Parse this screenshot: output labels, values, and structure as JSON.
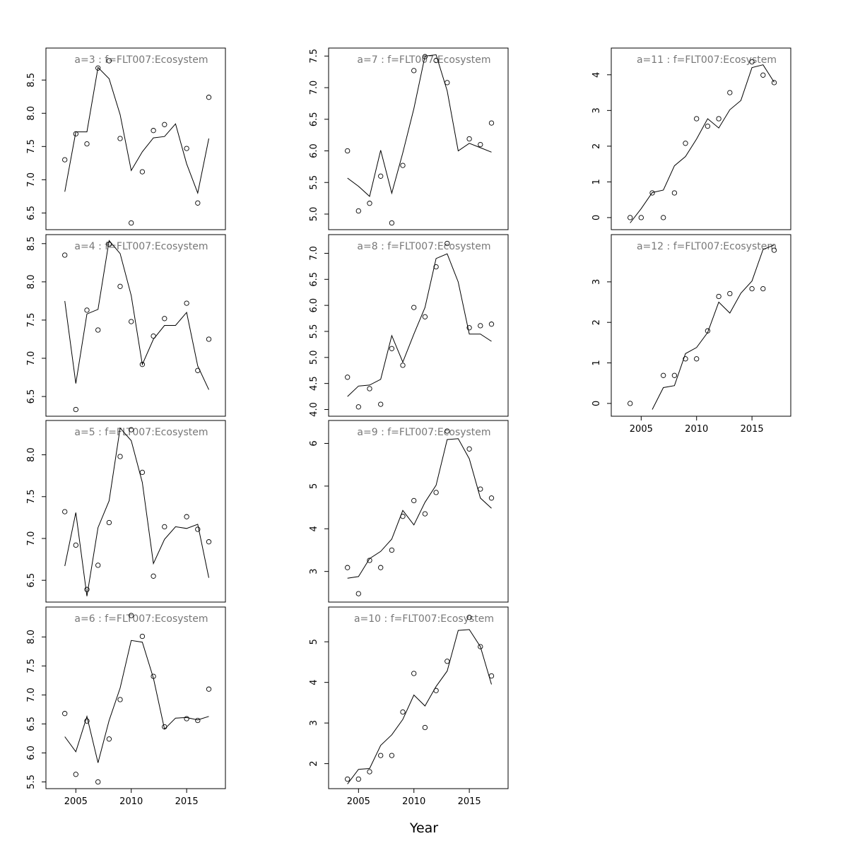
{
  "chart_data": {
    "type": "scatter",
    "xlabel": "Year",
    "x": [
      2004,
      2005,
      2006,
      2007,
      2008,
      2009,
      2010,
      2011,
      2012,
      2013,
      2014,
      2015,
      2016,
      2017
    ],
    "xlim": [
      2002.3,
      2018.5
    ],
    "xticks": [
      2005,
      2010,
      2015
    ],
    "panels": [
      {
        "title": "a=3  :  f=FLT007:Ecosystem",
        "ylim": [
          6.35,
          8.88
        ],
        "yticks": [
          "6.5",
          "7.0",
          "7.5",
          "8.0",
          "8.5"
        ],
        "points": [
          [
            2004,
            7.3
          ],
          [
            2005,
            7.69
          ],
          [
            2006,
            7.54
          ],
          [
            2007,
            8.68
          ],
          [
            2008,
            8.79
          ],
          [
            2009,
            7.62
          ],
          [
            2010,
            6.35
          ],
          [
            2011,
            7.12
          ],
          [
            2012,
            7.74
          ],
          [
            2013,
            7.83
          ],
          [
            2015,
            7.47
          ],
          [
            2016,
            6.65
          ],
          [
            2017,
            8.24
          ]
        ],
        "fit": [
          [
            2004,
            6.82
          ],
          [
            2005,
            7.72
          ],
          [
            2006,
            7.72
          ],
          [
            2007,
            8.69
          ],
          [
            2008,
            8.52
          ],
          [
            2009,
            7.98
          ],
          [
            2010,
            7.14
          ],
          [
            2011,
            7.42
          ],
          [
            2012,
            7.63
          ],
          [
            2013,
            7.65
          ],
          [
            2014,
            7.84
          ],
          [
            2015,
            7.24
          ],
          [
            2016,
            6.8
          ],
          [
            2017,
            7.62
          ]
        ]
      },
      {
        "title": "a=4  :  f=FLT007:Ecosystem",
        "ylim": [
          6.33,
          8.53
        ],
        "yticks": [
          "6.5",
          "7.0",
          "7.5",
          "8.0",
          "8.5"
        ],
        "points": [
          [
            2004,
            8.35
          ],
          [
            2005,
            6.33
          ],
          [
            2006,
            7.63
          ],
          [
            2007,
            7.37
          ],
          [
            2008,
            8.49
          ],
          [
            2009,
            7.94
          ],
          [
            2010,
            7.48
          ],
          [
            2011,
            6.92
          ],
          [
            2012,
            7.29
          ],
          [
            2013,
            7.52
          ],
          [
            2015,
            7.72
          ],
          [
            2016,
            6.84
          ],
          [
            2017,
            7.25
          ]
        ],
        "fit": [
          [
            2004,
            7.75
          ],
          [
            2005,
            6.67
          ],
          [
            2006,
            7.58
          ],
          [
            2007,
            7.64
          ],
          [
            2008,
            8.54
          ],
          [
            2009,
            8.37
          ],
          [
            2010,
            7.82
          ],
          [
            2011,
            6.92
          ],
          [
            2012,
            7.25
          ],
          [
            2013,
            7.43
          ],
          [
            2014,
            7.43
          ],
          [
            2015,
            7.6
          ],
          [
            2016,
            6.9
          ],
          [
            2017,
            6.59
          ]
        ]
      },
      {
        "title": "a=5  :  f=FLT007:Ecosystem",
        "ylim": [
          6.32,
          8.33
        ],
        "yticks": [
          "6.5",
          "7.0",
          "7.5",
          "8.0"
        ],
        "points": [
          [
            2004,
            7.32
          ],
          [
            2005,
            6.92
          ],
          [
            2006,
            6.39
          ],
          [
            2007,
            6.68
          ],
          [
            2008,
            7.19
          ],
          [
            2009,
            7.98
          ],
          [
            2010,
            8.3
          ],
          [
            2011,
            7.79
          ],
          [
            2012,
            6.55
          ],
          [
            2013,
            7.14
          ],
          [
            2015,
            7.26
          ],
          [
            2016,
            7.11
          ],
          [
            2017,
            6.96
          ]
        ],
        "fit": [
          [
            2004,
            6.67
          ],
          [
            2005,
            7.31
          ],
          [
            2006,
            6.31
          ],
          [
            2007,
            7.13
          ],
          [
            2008,
            7.45
          ],
          [
            2009,
            8.32
          ],
          [
            2010,
            8.17
          ],
          [
            2011,
            7.67
          ],
          [
            2012,
            6.7
          ],
          [
            2013,
            6.99
          ],
          [
            2014,
            7.14
          ],
          [
            2015,
            7.12
          ],
          [
            2016,
            7.17
          ],
          [
            2017,
            6.53
          ]
        ]
      },
      {
        "title": "a=6  :  f=FLT007:Ecosystem",
        "ylim": [
          5.5,
          8.4
        ],
        "yticks": [
          "5.5",
          "6.0",
          "6.5",
          "7.0",
          "7.5",
          "8.0"
        ],
        "points": [
          [
            2004,
            6.68
          ],
          [
            2005,
            5.63
          ],
          [
            2006,
            6.55
          ],
          [
            2007,
            5.5
          ],
          [
            2008,
            6.24
          ],
          [
            2009,
            6.92
          ],
          [
            2010,
            8.37
          ],
          [
            2011,
            8.01
          ],
          [
            2012,
            7.32
          ],
          [
            2013,
            6.45
          ],
          [
            2015,
            6.59
          ],
          [
            2016,
            6.56
          ],
          [
            2017,
            7.1
          ]
        ],
        "fit": [
          [
            2004,
            6.28
          ],
          [
            2005,
            6.02
          ],
          [
            2006,
            6.63
          ],
          [
            2007,
            5.83
          ],
          [
            2008,
            6.56
          ],
          [
            2009,
            7.12
          ],
          [
            2010,
            7.94
          ],
          [
            2011,
            7.91
          ],
          [
            2012,
            7.29
          ],
          [
            2013,
            6.41
          ],
          [
            2014,
            6.6
          ],
          [
            2015,
            6.61
          ],
          [
            2016,
            6.57
          ],
          [
            2017,
            6.63
          ]
        ]
      },
      {
        "title": "a=7  :  f=FLT007:Ecosystem",
        "ylim": [
          4.86,
          7.52
        ],
        "yticks": [
          "5.0",
          "5.5",
          "6.0",
          "6.5",
          "7.0",
          "7.5"
        ],
        "points": [
          [
            2004,
            6.0
          ],
          [
            2005,
            5.05
          ],
          [
            2006,
            5.17
          ],
          [
            2007,
            5.6
          ],
          [
            2008,
            4.86
          ],
          [
            2009,
            5.77
          ],
          [
            2010,
            7.27
          ],
          [
            2011,
            7.49
          ],
          [
            2012,
            7.43
          ],
          [
            2013,
            7.08
          ],
          [
            2015,
            6.19
          ],
          [
            2016,
            6.1
          ],
          [
            2017,
            6.44
          ]
        ],
        "fit": [
          [
            2004,
            5.57
          ],
          [
            2005,
            5.44
          ],
          [
            2006,
            5.28
          ],
          [
            2007,
            6.01
          ],
          [
            2008,
            5.33
          ],
          [
            2009,
            5.97
          ],
          [
            2010,
            6.67
          ],
          [
            2011,
            7.5
          ],
          [
            2012,
            7.52
          ],
          [
            2013,
            6.95
          ],
          [
            2014,
            6.0
          ],
          [
            2015,
            6.12
          ],
          [
            2016,
            6.05
          ],
          [
            2017,
            5.98
          ]
        ]
      },
      {
        "title": "a=8  :  f=FLT007:Ecosystem",
        "ylim": [
          4.0,
          7.23
        ],
        "yticks": [
          "4.0",
          "4.5",
          "5.0",
          "5.5",
          "6.0",
          "6.5",
          "7.0"
        ],
        "points": [
          [
            2004,
            4.62
          ],
          [
            2005,
            4.05
          ],
          [
            2006,
            4.4
          ],
          [
            2007,
            4.1
          ],
          [
            2008,
            5.17
          ],
          [
            2009,
            4.85
          ],
          [
            2010,
            5.96
          ],
          [
            2011,
            5.78
          ],
          [
            2012,
            6.74
          ],
          [
            2013,
            7.19
          ],
          [
            2015,
            5.57
          ],
          [
            2016,
            5.61
          ],
          [
            2017,
            5.64
          ]
        ],
        "fit": [
          [
            2004,
            4.25
          ],
          [
            2005,
            4.45
          ],
          [
            2006,
            4.47
          ],
          [
            2007,
            4.58
          ],
          [
            2008,
            5.42
          ],
          [
            2009,
            4.91
          ],
          [
            2010,
            5.45
          ],
          [
            2011,
            5.96
          ],
          [
            2012,
            6.9
          ],
          [
            2013,
            6.99
          ],
          [
            2014,
            6.45
          ],
          [
            2015,
            5.45
          ],
          [
            2016,
            5.45
          ],
          [
            2017,
            5.31
          ]
        ]
      },
      {
        "title": "a=9  :  f=FLT007:Ecosystem",
        "ylim": [
          2.44,
          6.38
        ],
        "yticks": [
          "3",
          "4",
          "5",
          "6"
        ],
        "points": [
          [
            2004,
            3.09
          ],
          [
            2005,
            2.48
          ],
          [
            2006,
            3.26
          ],
          [
            2007,
            3.09
          ],
          [
            2008,
            3.5
          ],
          [
            2009,
            4.29
          ],
          [
            2010,
            4.66
          ],
          [
            2011,
            4.35
          ],
          [
            2012,
            4.85
          ],
          [
            2013,
            6.29
          ],
          [
            2015,
            5.87
          ],
          [
            2016,
            4.93
          ],
          [
            2017,
            4.72
          ]
        ],
        "fit": [
          [
            2004,
            2.84
          ],
          [
            2005,
            2.88
          ],
          [
            2006,
            3.3
          ],
          [
            2007,
            3.47
          ],
          [
            2008,
            3.76
          ],
          [
            2009,
            4.43
          ],
          [
            2010,
            4.09
          ],
          [
            2011,
            4.62
          ],
          [
            2012,
            5.02
          ],
          [
            2013,
            6.09
          ],
          [
            2014,
            6.11
          ],
          [
            2015,
            5.64
          ],
          [
            2016,
            4.72
          ],
          [
            2017,
            4.48
          ]
        ]
      },
      {
        "title": "a=10  :  f=FLT007:Ecosystem",
        "ylim": [
          1.55,
          5.69
        ],
        "yticks": [
          "2",
          "3",
          "4",
          "5"
        ],
        "points": [
          [
            2004,
            1.62
          ],
          [
            2005,
            1.62
          ],
          [
            2006,
            1.8
          ],
          [
            2007,
            2.2
          ],
          [
            2008,
            2.2
          ],
          [
            2009,
            3.27
          ],
          [
            2010,
            4.22
          ],
          [
            2011,
            2.89
          ],
          [
            2012,
            3.8
          ],
          [
            2013,
            4.52
          ],
          [
            2015,
            5.6
          ],
          [
            2016,
            4.88
          ],
          [
            2017,
            4.16
          ]
        ],
        "fit": [
          [
            2004,
            1.5
          ],
          [
            2005,
            1.86
          ],
          [
            2006,
            1.88
          ],
          [
            2007,
            2.45
          ],
          [
            2008,
            2.71
          ],
          [
            2009,
            3.09
          ],
          [
            2010,
            3.69
          ],
          [
            2011,
            3.42
          ],
          [
            2012,
            3.9
          ],
          [
            2013,
            4.28
          ],
          [
            2014,
            5.28
          ],
          [
            2015,
            5.3
          ],
          [
            2016,
            4.88
          ],
          [
            2017,
            3.95
          ]
        ]
      },
      {
        "title": "a=11  :  f=FLT007:Ecosystem",
        "ylim": [
          -0.15,
          4.56
        ],
        "yticks": [
          "0",
          "1",
          "2",
          "3",
          "4"
        ],
        "points": [
          [
            2004,
            0.0
          ],
          [
            2005,
            0.0
          ],
          [
            2006,
            0.69
          ],
          [
            2007,
            0.0
          ],
          [
            2008,
            0.69
          ],
          [
            2009,
            2.08
          ],
          [
            2010,
            2.77
          ],
          [
            2011,
            2.56
          ],
          [
            2012,
            2.77
          ],
          [
            2013,
            3.5
          ],
          [
            2015,
            4.36
          ],
          [
            2016,
            3.99
          ],
          [
            2017,
            3.78
          ]
        ],
        "fit": [
          [
            2004,
            -0.15
          ],
          [
            2005,
            0.25
          ],
          [
            2006,
            0.7
          ],
          [
            2007,
            0.77
          ],
          [
            2008,
            1.45
          ],
          [
            2009,
            1.71
          ],
          [
            2010,
            2.2
          ],
          [
            2011,
            2.77
          ],
          [
            2012,
            2.51
          ],
          [
            2013,
            3.02
          ],
          [
            2014,
            3.28
          ],
          [
            2015,
            4.2
          ],
          [
            2016,
            4.28
          ],
          [
            2017,
            3.79
          ]
        ]
      },
      {
        "title": "a=12  :  f=FLT007:Ecosystem",
        "ylim": [
          -0.15,
          4.0
        ],
        "yticks": [
          "0",
          "1",
          "2",
          "3"
        ],
        "points": [
          [
            2004,
            0.0
          ],
          [
            2007,
            0.69
          ],
          [
            2008,
            0.69
          ],
          [
            2009,
            1.1
          ],
          [
            2010,
            1.1
          ],
          [
            2011,
            1.79
          ],
          [
            2012,
            2.64
          ],
          [
            2013,
            2.71
          ],
          [
            2015,
            2.83
          ],
          [
            2016,
            2.83
          ],
          [
            2017,
            3.78
          ]
        ],
        "fit": [
          [
            2006,
            -0.15
          ],
          [
            2007,
            0.39
          ],
          [
            2008,
            0.44
          ],
          [
            2009,
            1.23
          ],
          [
            2010,
            1.38
          ],
          [
            2011,
            1.75
          ],
          [
            2012,
            2.5
          ],
          [
            2013,
            2.23
          ],
          [
            2014,
            2.72
          ],
          [
            2015,
            3.02
          ],
          [
            2016,
            3.8
          ],
          [
            2017,
            3.91
          ]
        ]
      }
    ]
  }
}
